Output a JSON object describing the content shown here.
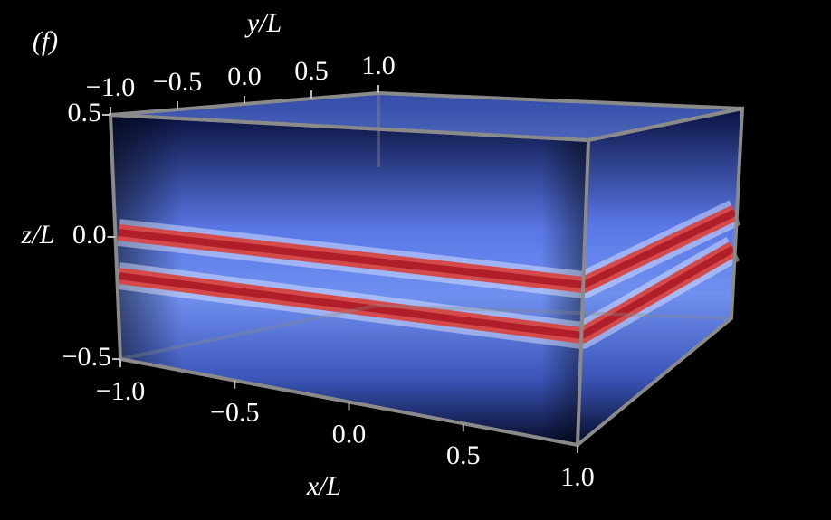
{
  "chart_data": {
    "type": "volume",
    "panel_label": "(f)",
    "xlabel": "x/L",
    "ylabel": "y/L",
    "zlabel": "z/L",
    "xlim": [
      -1,
      1
    ],
    "ylim": [
      -1,
      1
    ],
    "zlim": [
      -0.5,
      0.5
    ],
    "xticks": [
      {
        "value": -1,
        "label": "−1.0"
      },
      {
        "value": -0.5,
        "label": "−0.5"
      },
      {
        "value": 0,
        "label": "0.0"
      },
      0.5,
      {
        "value": 1,
        "label": "1.0"
      }
    ],
    "yticks": [
      {
        "value": -1,
        "label": "−1.0"
      },
      {
        "value": -0.5,
        "label": "−0.5"
      },
      {
        "value": 0,
        "label": "0.0"
      },
      0.5,
      {
        "value": 1,
        "label": "1.0"
      }
    ],
    "zticks": [
      0.5,
      {
        "value": 0,
        "label": "0.0"
      },
      {
        "value": -0.5,
        "label": "−0.5"
      }
    ]
  }
}
